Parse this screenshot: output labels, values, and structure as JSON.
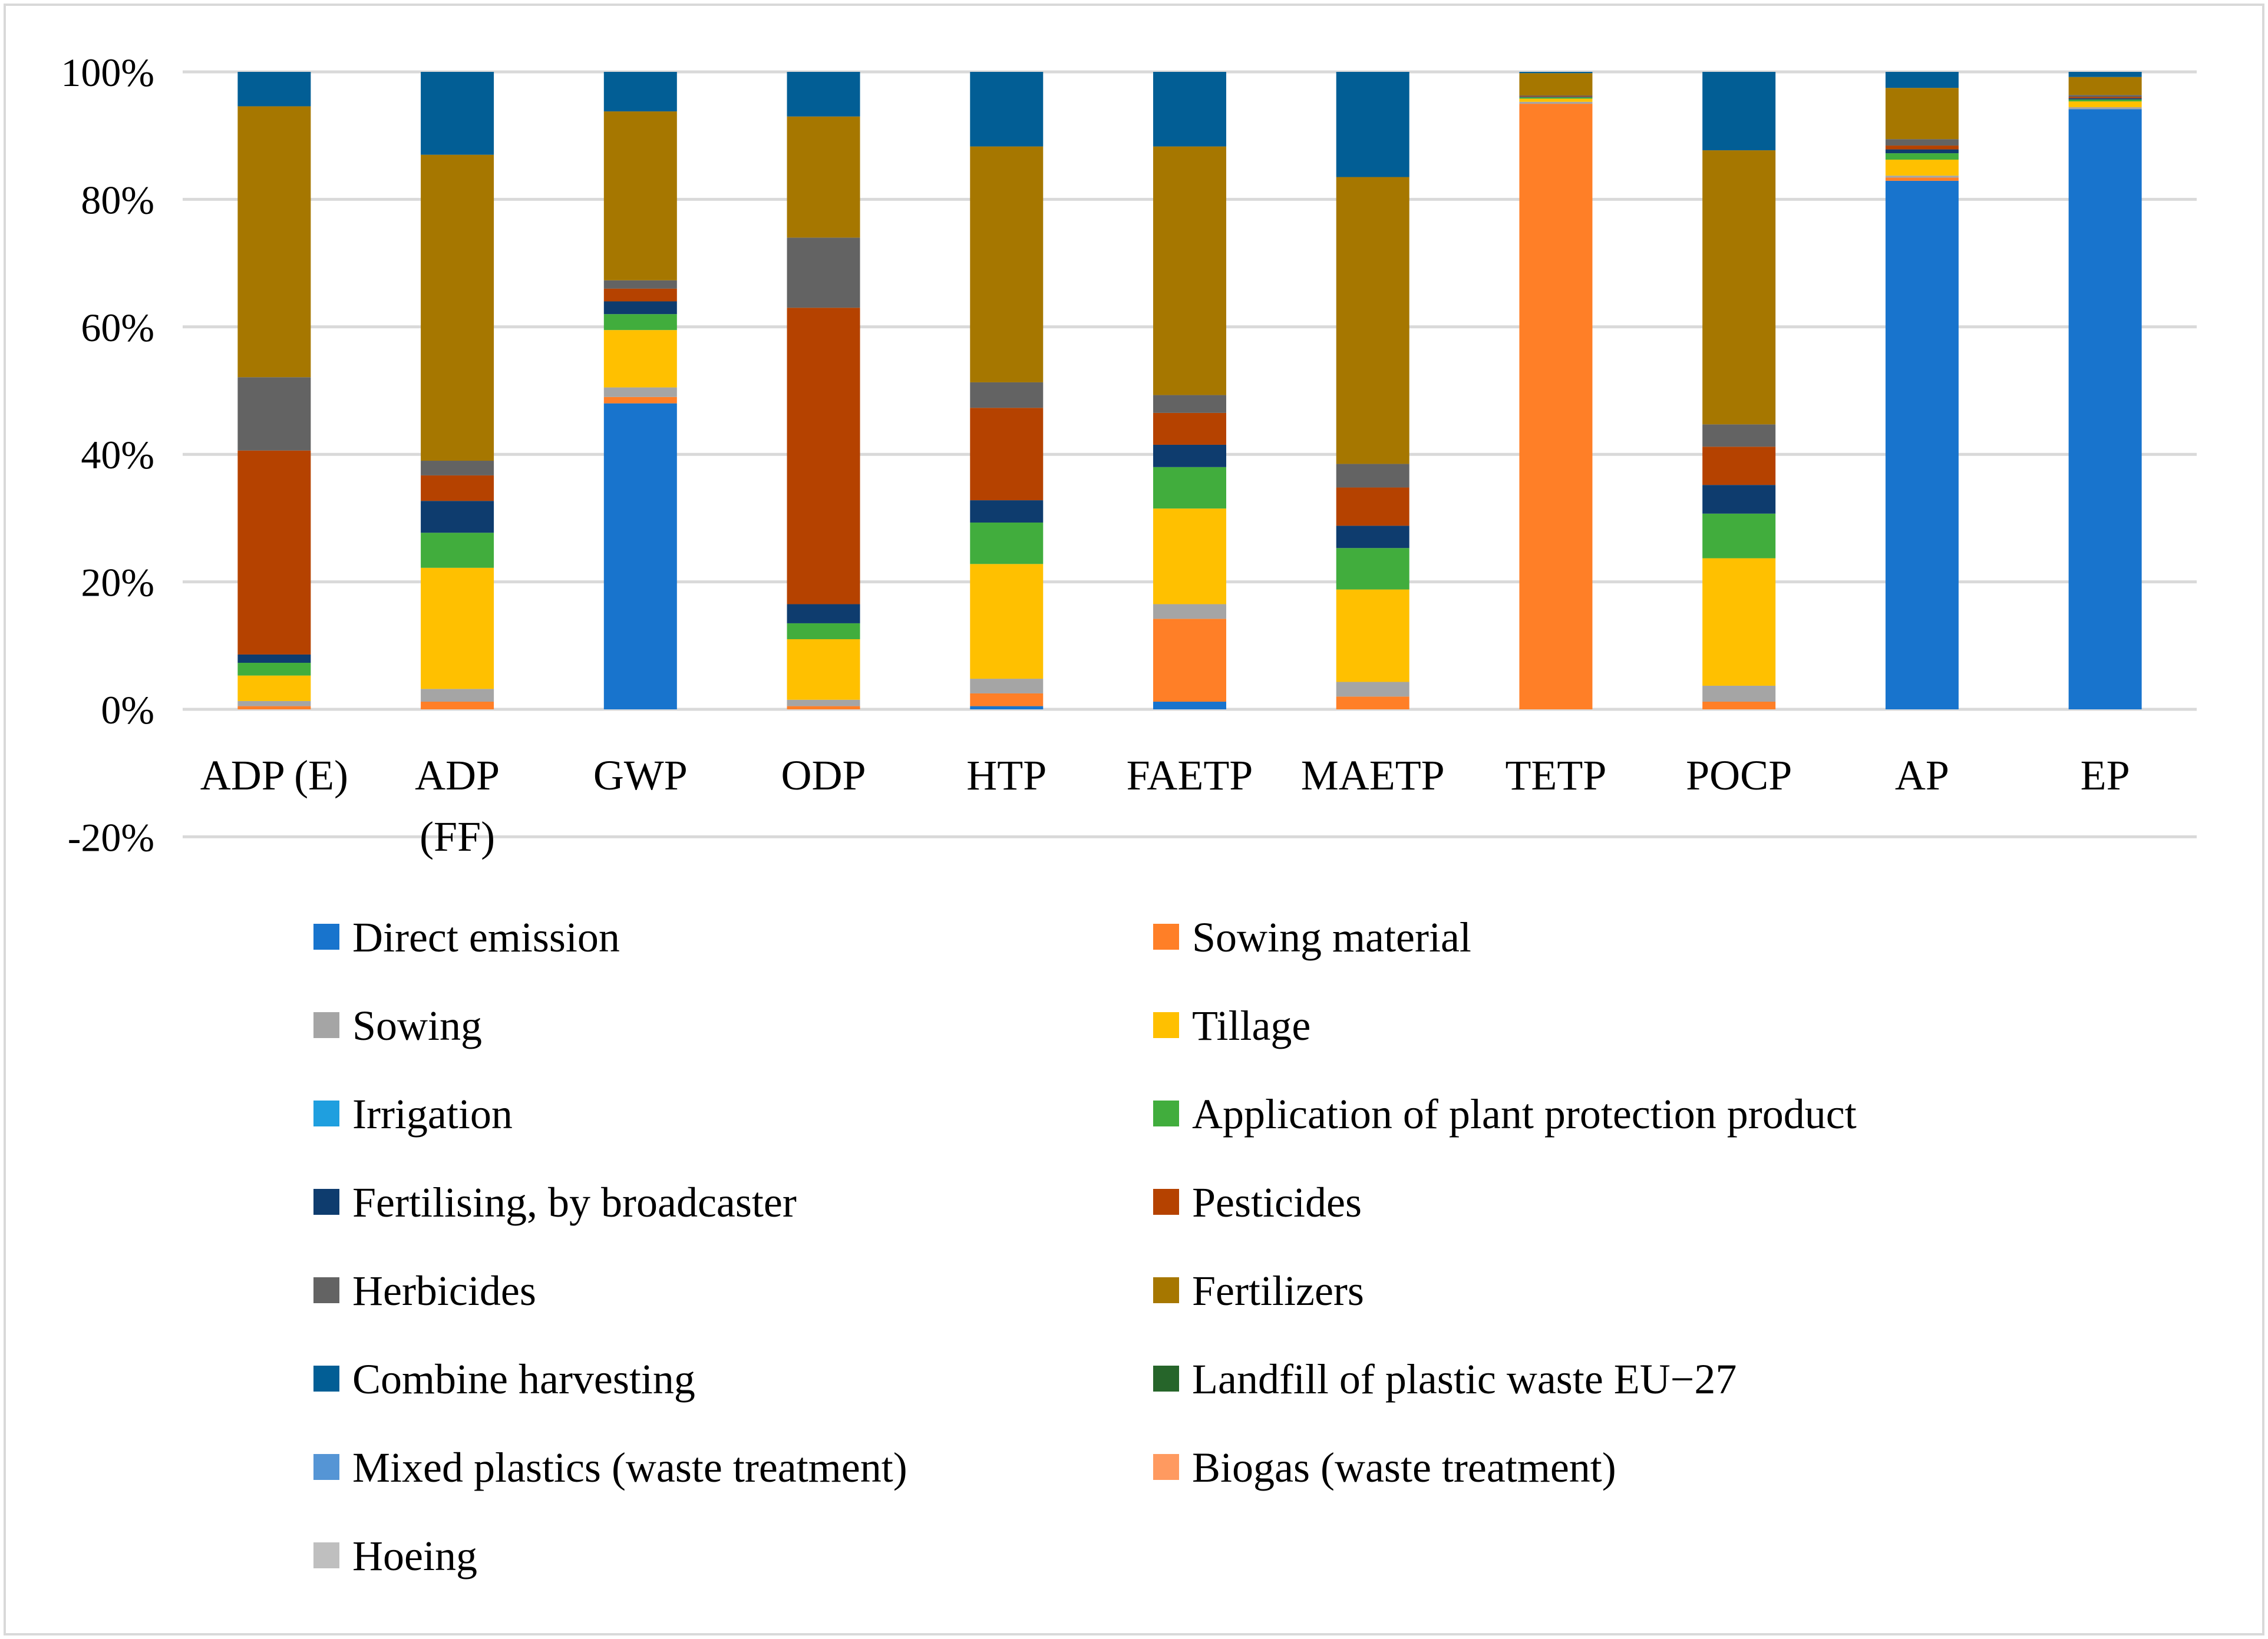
{
  "chart_data": {
    "type": "bar",
    "stacked": true,
    "percent_stacked": true,
    "title": "",
    "xlabel": "",
    "ylabel": "",
    "ylim": [
      -20,
      100
    ],
    "y_ticks": [
      "-20%",
      "0%",
      "20%",
      "40%",
      "60%",
      "80%",
      "100%"
    ],
    "y_tick_values": [
      -20,
      0,
      20,
      40,
      60,
      80,
      100
    ],
    "grid": true,
    "legend_position": "bottom",
    "categories": [
      {
        "label_lines": [
          "ADP (E)"
        ]
      },
      {
        "label_lines": [
          "ADP",
          "(FF)"
        ]
      },
      {
        "label_lines": [
          "GWP"
        ]
      },
      {
        "label_lines": [
          "ODP"
        ]
      },
      {
        "label_lines": [
          "HTP"
        ]
      },
      {
        "label_lines": [
          "FAETP"
        ]
      },
      {
        "label_lines": [
          "MAETP"
        ]
      },
      {
        "label_lines": [
          "TETP"
        ]
      },
      {
        "label_lines": [
          "POCP"
        ]
      },
      {
        "label_lines": [
          "AP"
        ]
      },
      {
        "label_lines": [
          "EP"
        ]
      }
    ],
    "series": [
      {
        "name": "Direct emission",
        "color": "#1874CD",
        "values": [
          0,
          0,
          48,
          0,
          0.5,
          1.2,
          0,
          0,
          0,
          82.5,
          93.5
        ]
      },
      {
        "name": "Sowing material",
        "color": "#FF7F27",
        "values": [
          0.5,
          1.2,
          1.0,
          0.5,
          2.0,
          13.0,
          2.0,
          95.0,
          1.2,
          0.5,
          0
        ]
      },
      {
        "name": "Sowing",
        "color": "#A5A5A5",
        "values": [
          0.8,
          2.0,
          1.5,
          1.0,
          2.3,
          2.3,
          2.3,
          0.3,
          2.5,
          0.3,
          0.3
        ]
      },
      {
        "name": "Tillage",
        "color": "#FFC000",
        "values": [
          4.0,
          19.0,
          9.0,
          9.5,
          18.0,
          15.0,
          14.5,
          0.5,
          20.0,
          2.5,
          0.9
        ]
      },
      {
        "name": "Irrigation",
        "color": "#1F9FDF",
        "values": [
          0,
          0,
          0,
          0,
          0,
          0,
          0,
          0,
          0,
          0,
          0
        ]
      },
      {
        "name": "Application of plant protection product",
        "color": "#41AD3D",
        "values": [
          2.0,
          5.5,
          2.5,
          2.5,
          6.5,
          6.5,
          6.5,
          0.2,
          7.0,
          1.0,
          0.3
        ]
      },
      {
        "name": "Fertilising, by broadcaster",
        "color": "#0E3C6E",
        "values": [
          1.3,
          5.0,
          2.0,
          3.0,
          3.5,
          3.5,
          3.5,
          0.1,
          4.5,
          0.6,
          0.2
        ]
      },
      {
        "name": "Pesticides",
        "color": "#B54200",
        "values": [
          32,
          4.0,
          2.0,
          46.5,
          14.5,
          5.0,
          6.0,
          0.1,
          6.0,
          0.6,
          0.2
        ]
      },
      {
        "name": "Herbicides",
        "color": "#636363",
        "values": [
          11.5,
          2.3,
          1.3,
          11.0,
          4.0,
          2.8,
          3.7,
          0.1,
          3.5,
          1.0,
          0.3
        ]
      },
      {
        "name": "Fertilizers",
        "color": "#A67700",
        "values": [
          42.5,
          48.0,
          26.5,
          19.0,
          37.0,
          39.0,
          45.0,
          3.5,
          43.0,
          8.0,
          2.8
        ]
      },
      {
        "name": "Combine harvesting",
        "color": "#025E95",
        "values": [
          5.4,
          13.0,
          6.2,
          7.0,
          11.7,
          11.7,
          16.5,
          0.2,
          12.3,
          2.5,
          0.8
        ]
      },
      {
        "name": "Landfill of plastic waste EU−27",
        "color": "#26652A",
        "values": [
          0,
          0,
          0,
          0,
          0,
          0,
          0,
          0,
          0,
          0,
          0
        ]
      },
      {
        "name": "Mixed plastics (waste treatment)",
        "color": "#5595D5",
        "values": [
          0,
          0,
          0,
          0,
          0,
          0,
          0,
          0,
          0,
          0,
          0
        ]
      },
      {
        "name": "Biogas (waste treatment)",
        "color": "#FF9A60",
        "values": [
          0,
          0,
          0,
          0,
          0,
          0,
          0,
          0,
          0,
          0,
          0
        ]
      },
      {
        "name": "Hoeing",
        "color": "#BFBFBF",
        "values": [
          0,
          0,
          0,
          0,
          0,
          0,
          0,
          0,
          0,
          0,
          0
        ]
      }
    ]
  }
}
